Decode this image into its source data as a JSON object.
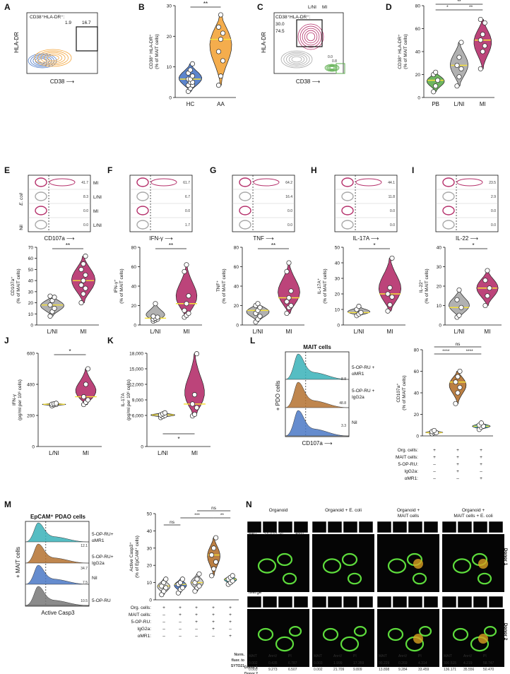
{
  "colors": {
    "magenta": "#b5306b",
    "orange": "#f3a43a",
    "grey": "#a9a9a9",
    "green": "#5eae4f",
    "yellow": "#f6e03a",
    "teal": "#38b2b8",
    "brown": "#b4712f",
    "blue": "#4a78c6",
    "dot": "#ffffff"
  },
  "panels": {
    "A": {
      "letter": "A",
      "gate": "CD38⁺HLA-DR⁺:",
      "v1": "1.9",
      "v2": "16.7",
      "y": "HLA-DR",
      "x": "CD38"
    },
    "B": {
      "letter": "B"
    },
    "C": {
      "letter": "C",
      "leg1": "L/NI",
      "leg2": "MI",
      "gate": "CD38⁺HLA-DR⁺:",
      "v1": "30.0",
      "v2": "74.5",
      "v3": "0.0",
      "v4": "0.8",
      "y": "HLA-DR",
      "x": "CD38"
    },
    "D": {
      "letter": "D"
    },
    "E": {
      "letter": "E",
      "x": "CD107a",
      "v": [
        "41.7",
        "8.3",
        "0.0",
        "0.0"
      ]
    },
    "F": {
      "letter": "F",
      "x": "IFN-γ",
      "v": [
        "61.7",
        "6.7",
        "0.0",
        "1.7"
      ]
    },
    "G": {
      "letter": "G",
      "x": "TNF",
      "v": [
        "64.2",
        "16.4",
        "0.0",
        "0.0"
      ]
    },
    "H": {
      "letter": "H",
      "x": "IL-17A",
      "v": [
        "44.1",
        "11.8",
        "0.0",
        "0.0"
      ]
    },
    "I": {
      "letter": "I",
      "x": "IL-22",
      "v": [
        "23.5",
        "2.9",
        "0.0",
        "0.0"
      ]
    },
    "rowlabels": {
      "ecoli": "E. coli",
      "nil": "Nil",
      "mi": "MI",
      "lni": "L/NI"
    },
    "J": {
      "letter": "J"
    },
    "K": {
      "letter": "K"
    },
    "L": {
      "letter": "L",
      "title": "MAIT cells",
      "side": "+ PDO cells",
      "x": "CD107a",
      "leg": [
        "5-OP-RU +",
        "αMR1",
        "5-OP-RU +",
        "IgG2a",
        "Nil"
      ],
      "vals": [
        "8.8",
        "48.8",
        "3.3"
      ]
    },
    "L2": {
      "rows": [
        "Org. cells:",
        "MAIT cells:",
        "5-OP-RU:",
        "IgG2a:",
        "αMR1:"
      ],
      "signs": [
        [
          "+",
          "+",
          "+"
        ],
        [
          "+",
          "+",
          "+"
        ],
        [
          "–",
          "+",
          "+"
        ],
        [
          "–",
          "+",
          "–"
        ],
        [
          "–",
          "–",
          "+"
        ]
      ]
    },
    "M": {
      "letter": "M",
      "title": "EpCAM⁺ PDAO cells",
      "side": "+ MAIT cells",
      "x": "Active Casp3",
      "leg": [
        "5-OP-RU+",
        "αMR1",
        "5-OP-RU+",
        "IgG2a",
        "Nil",
        "5-OP-RU"
      ],
      "vals": [
        "12.1",
        "34.7",
        "7.5",
        "10.5"
      ]
    },
    "M2": {
      "rows": [
        "Org. cells:",
        "MAIT cells:",
        "5-OP-RU:",
        "IgG2a:",
        "αMR1:"
      ],
      "signs": [
        [
          "+",
          "+",
          "+",
          "+",
          "+"
        ],
        [
          "–",
          "+",
          "+",
          "+",
          "+"
        ],
        [
          "–",
          "–",
          "+",
          "+",
          "+"
        ],
        [
          "–",
          "–",
          "–",
          "+",
          "–"
        ],
        [
          "–",
          "–",
          "–",
          "–",
          "+"
        ]
      ]
    },
    "N": {
      "letter": "N",
      "cols": [
        "Organoid",
        "Organoid + E. coli",
        "Organoid +\nMAIT cells",
        "Organoid +\nMAIT cells + E. coli"
      ],
      "donors": [
        "Donor 1",
        "Donor 2"
      ],
      "stains": [
        "MAIT",
        "SYTO21",
        "PI",
        "AnnV"
      ],
      "merge": "Merge",
      "table": {
        "head": [
          "Norm.",
          "fluor. to",
          "SYTO21"
        ],
        "rows": [
          {
            "donor": "Donor 1",
            "vals": [
              [
                "0.002",
                "0.435",
                "6.787"
              ],
              [
                "0.003",
                "1.999",
                "17.359"
              ],
              [
                "90.229",
                "0.269",
                "4.314"
              ],
              [
                "300.515",
                "4.219",
                "58.747"
              ]
            ]
          },
          {
            "donor": "Donor 2",
            "vals": [
              [
                "0.003",
                "9.273",
                "6.507"
              ],
              [
                "0.002",
                "21.709",
                "9.809"
              ],
              [
                "13.898",
                "9.284",
                "33.459"
              ],
              [
                "136.171",
                "35.556",
                "50.470"
              ]
            ]
          }
        ],
        "colhead": [
          "MAIT",
          "AnnV",
          "PI"
        ]
      }
    }
  },
  "chart_data": [
    {
      "id": "B",
      "type": "violin",
      "categories": [
        "HC",
        "AA"
      ],
      "ylabel": "CD38⁺ HLA-DR⁺\n(% of MAIT cells)",
      "ylim": [
        0,
        30
      ],
      "yticks": [
        0,
        10,
        20,
        30
      ],
      "sig": "**",
      "series": [
        {
          "name": "HC",
          "values": [
            2,
            3,
            4,
            4,
            5,
            5,
            6,
            6,
            7,
            8,
            9,
            11
          ]
        },
        {
          "name": "AA",
          "values": [
            4,
            7,
            12,
            15,
            19,
            21,
            23,
            27
          ]
        }
      ]
    },
    {
      "id": "D",
      "type": "violin",
      "categories": [
        "PB",
        "L/NI",
        "MI"
      ],
      "ylabel": "CD38⁺ HLA-DR⁺\n(% of MAIT cells)",
      "ylim": [
        0,
        80
      ],
      "yticks": [
        0,
        20,
        40,
        60,
        80
      ],
      "sig": [
        "*",
        "**",
        "**"
      ],
      "series": [
        {
          "name": "PB",
          "values": [
            5,
            10,
            15,
            20,
            22
          ]
        },
        {
          "name": "L/NI",
          "values": [
            10,
            18,
            25,
            28,
            35,
            48
          ]
        },
        {
          "name": "MI",
          "values": [
            25,
            40,
            45,
            50,
            55,
            65,
            68
          ]
        }
      ]
    },
    {
      "id": "E",
      "type": "violin",
      "categories": [
        "L/NI",
        "MI"
      ],
      "ylabel": "CD107a⁺\n(% of MAIT cells)",
      "ylim": [
        0,
        70
      ],
      "yticks": [
        0,
        10,
        20,
        30,
        40,
        50,
        60,
        70
      ],
      "sig": "**",
      "series": [
        {
          "name": "L/NI",
          "values": [
            8,
            12,
            15,
            18,
            22,
            25,
            26
          ]
        },
        {
          "name": "MI",
          "values": [
            20,
            28,
            33,
            36,
            40,
            45,
            50,
            55,
            62
          ]
        }
      ]
    },
    {
      "id": "F",
      "type": "violin",
      "categories": [
        "L/NI",
        "MI"
      ],
      "ylabel": "IFN-γ⁺\n(% of MAIT cells)",
      "ylim": [
        0,
        80
      ],
      "yticks": [
        0,
        20,
        40,
        60,
        80
      ],
      "sig": "**",
      "series": [
        {
          "name": "L/NI",
          "values": [
            4,
            5,
            6,
            6,
            7,
            8,
            9,
            22
          ]
        },
        {
          "name": "MI",
          "values": [
            8,
            10,
            12,
            15,
            22,
            30,
            55,
            62
          ]
        }
      ]
    },
    {
      "id": "G",
      "type": "violin",
      "categories": [
        "L/NI",
        "MI"
      ],
      "ylabel": "TNF⁺\n(% of MAIT cells)",
      "ylim": [
        0,
        80
      ],
      "yticks": [
        0,
        20,
        40,
        60,
        80
      ],
      "sig": "**",
      "series": [
        {
          "name": "L/NI",
          "values": [
            3,
            6,
            9,
            12,
            15,
            18,
            20,
            22
          ]
        },
        {
          "name": "MI",
          "values": [
            12,
            18,
            20,
            24,
            28,
            35,
            55,
            64
          ]
        }
      ]
    },
    {
      "id": "H",
      "type": "violin",
      "categories": [
        "L/NI",
        "MI"
      ],
      "ylabel": "IL-17A⁺\n(% of MAIT cells)",
      "ylim": [
        0,
        50
      ],
      "yticks": [
        0,
        10,
        20,
        30,
        40,
        50
      ],
      "sig": "*",
      "series": [
        {
          "name": "L/NI",
          "values": [
            6,
            7,
            8,
            10,
            12
          ]
        },
        {
          "name": "MI",
          "values": [
            9,
            13,
            18,
            20,
            24,
            43
          ]
        }
      ]
    },
    {
      "id": "I",
      "type": "violin",
      "categories": [
        "L/NI",
        "MI"
      ],
      "ylabel": "IL-22⁺\n(% of MAIT cells)",
      "ylim": [
        0,
        40
      ],
      "yticks": [
        0,
        10,
        20,
        30,
        40
      ],
      "sig": "*",
      "series": [
        {
          "name": "L/NI",
          "values": [
            4,
            5,
            9,
            13,
            18
          ]
        },
        {
          "name": "MI",
          "values": [
            10,
            15,
            19,
            23,
            28
          ]
        }
      ]
    },
    {
      "id": "J",
      "type": "violin",
      "categories": [
        "L/NI",
        "MI"
      ],
      "ylabel": "IFN-γ\n(pg/ml per 10⁶ cells)",
      "ylim": [
        0,
        600
      ],
      "yticks": [
        0,
        200,
        400,
        600
      ],
      "sig": "*",
      "series": [
        {
          "name": "L/NI",
          "values": [
            262,
            268,
            270,
            272,
            275,
            278
          ]
        },
        {
          "name": "MI",
          "values": [
            270,
            285,
            300,
            320,
            400,
            500
          ]
        }
      ]
    },
    {
      "id": "K",
      "type": "violin",
      "categories": [
        "L/NI",
        "MI"
      ],
      "ylabel": "IL-17A\n(pg/ml per 10⁶ cells)",
      "ylim": [
        0,
        18000
      ],
      "yticks": [
        0,
        6000,
        9000,
        12000,
        15000,
        18000
      ],
      "sig": "*",
      "series": [
        {
          "name": "L/NI",
          "values": [
            5600,
            5800,
            6000,
            6100,
            6300,
            6500
          ]
        },
        {
          "name": "MI",
          "values": [
            5900,
            6200,
            7500,
            8200,
            10000,
            17900
          ]
        }
      ]
    },
    {
      "id": "L",
      "type": "violin",
      "categories": [
        "1",
        "2",
        "3"
      ],
      "ylabel": "CD107a⁺\n(% of MAIT cells)",
      "ylim": [
        0,
        80
      ],
      "yticks": [
        0,
        20,
        40,
        60,
        80
      ],
      "sig": [
        "****",
        "****",
        "ns"
      ],
      "series": [
        {
          "name": "Nil",
          "values": [
            2,
            3,
            3,
            4,
            5
          ]
        },
        {
          "name": "IgG2a",
          "values": [
            30,
            40,
            45,
            50,
            55,
            60
          ]
        },
        {
          "name": "αMR1",
          "values": [
            6,
            8,
            9,
            10,
            12
          ]
        }
      ]
    },
    {
      "id": "M",
      "type": "violin",
      "categories": [
        "1",
        "2",
        "3",
        "4",
        "5"
      ],
      "ylabel": "Active Casp3⁺\n(% of EpCAM⁺ cells)",
      "ylim": [
        0,
        50
      ],
      "yticks": [
        0,
        10,
        20,
        30,
        40,
        50
      ],
      "sig": [
        "ns",
        "***",
        "**",
        "ns"
      ],
      "series": [
        {
          "name": "Org",
          "values": [
            3,
            5,
            7,
            8,
            10,
            12
          ]
        },
        {
          "name": "Org+MAIT",
          "values": [
            4,
            6,
            7,
            9,
            10,
            12
          ]
        },
        {
          "name": "5-OP-RU",
          "values": [
            5,
            7,
            8,
            10,
            12,
            15
          ]
        },
        {
          "name": "IgG2a",
          "values": [
            14,
            18,
            22,
            26,
            30,
            36
          ]
        },
        {
          "name": "αMR1",
          "values": [
            9,
            10,
            11,
            12,
            13,
            14
          ]
        }
      ]
    }
  ]
}
